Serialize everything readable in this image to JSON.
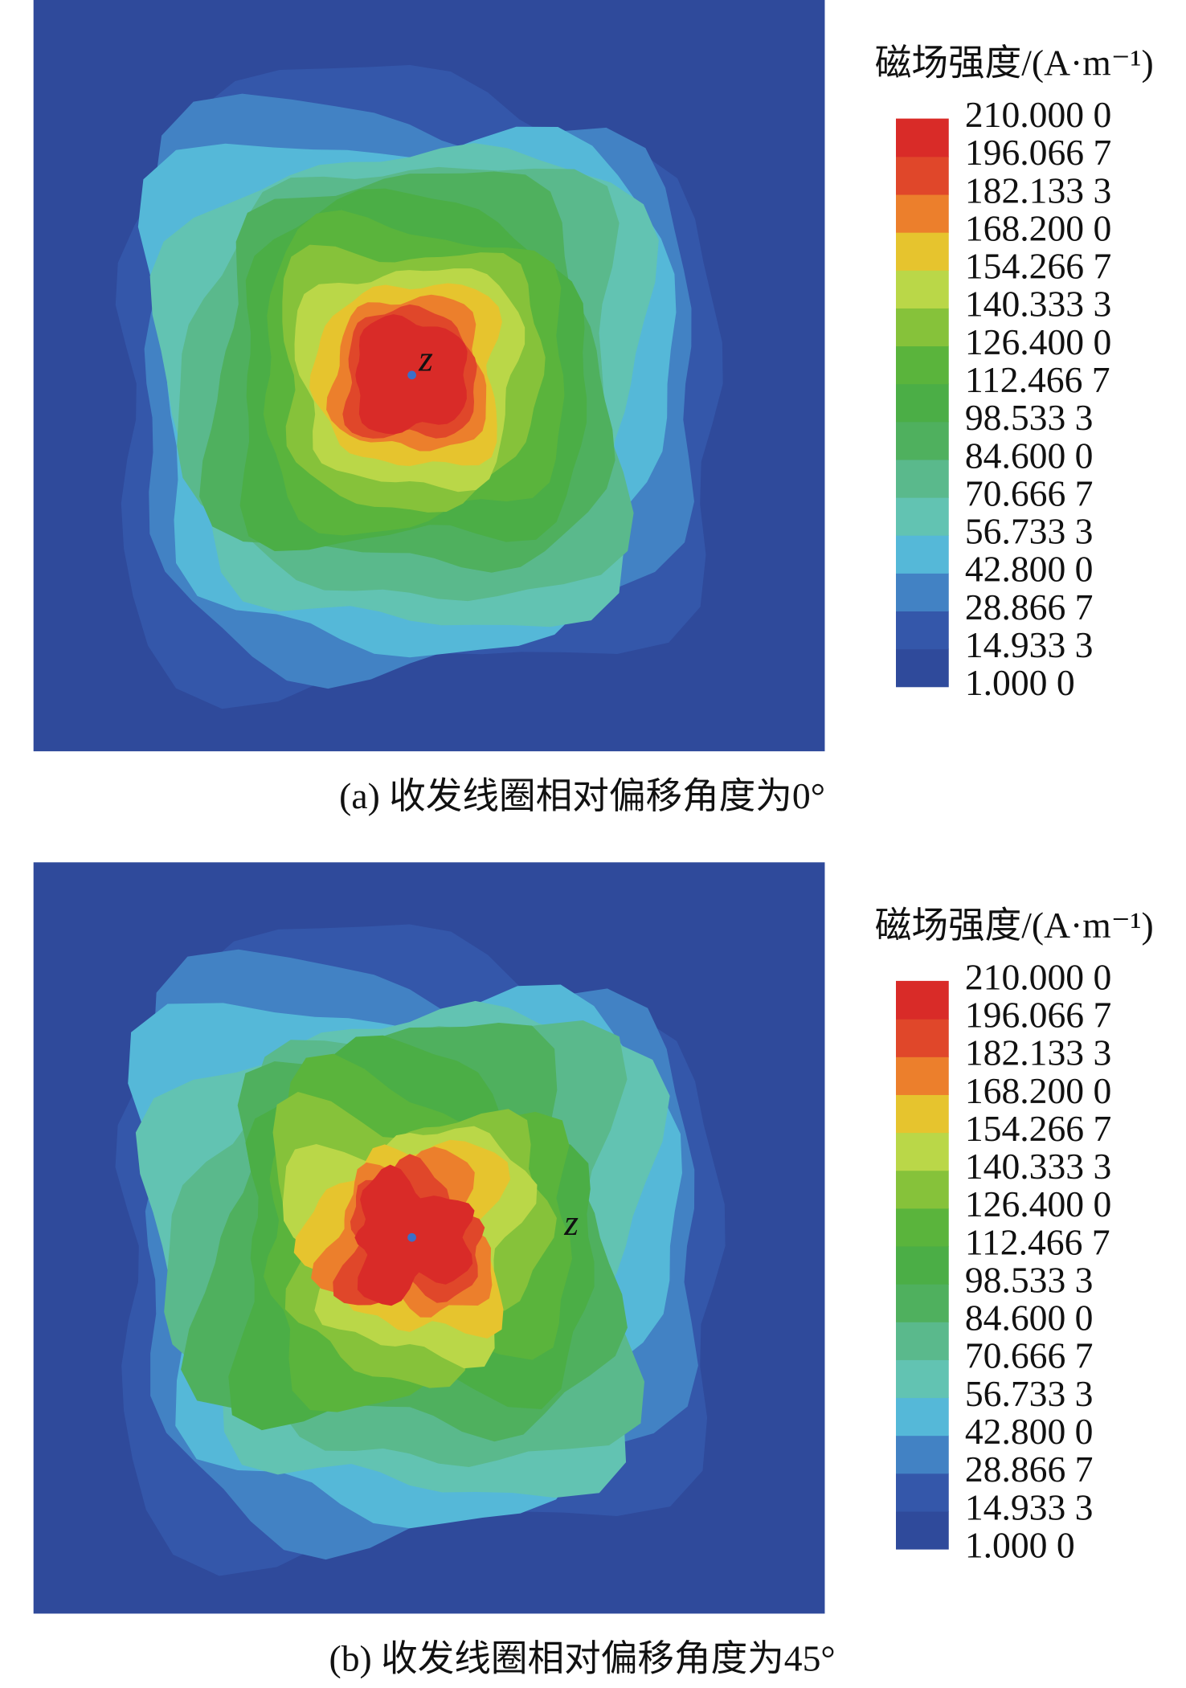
{
  "chart_data": [
    {
      "type": "contour",
      "title": "(a) 收发线圈相对偏移角度为0°",
      "legend_title": "磁场强度/(A·m⁻¹)",
      "annotation": "z",
      "levels": [
        {
          "value": 1.0,
          "label": "1.000 0"
        },
        {
          "value": 14.9333,
          "label": "14.933 3"
        },
        {
          "value": 28.8667,
          "label": "28.866 7"
        },
        {
          "value": 42.8,
          "label": "42.800 0"
        },
        {
          "value": 56.7333,
          "label": "56.733 3"
        },
        {
          "value": 70.6667,
          "label": "70.666 7"
        },
        {
          "value": 84.6,
          "label": "84.600 0"
        },
        {
          "value": 98.5333,
          "label": "98.533 3"
        },
        {
          "value": 112.4667,
          "label": "112.466 7"
        },
        {
          "value": 126.4,
          "label": "126.400 0"
        },
        {
          "value": 140.3333,
          "label": "140.333 3"
        },
        {
          "value": 154.2667,
          "label": "154.266 7"
        },
        {
          "value": 168.2,
          "label": "168.200 0"
        },
        {
          "value": 182.1333,
          "label": "182.133 3"
        },
        {
          "value": 196.0667,
          "label": "196.066 7"
        },
        {
          "value": 210.0,
          "label": "210.000 0"
        }
      ],
      "colors": [
        "#2f4a9b",
        "#3457aa",
        "#4282c4",
        "#55b8d8",
        "#62c3b2",
        "#5ab98c",
        "#4fb05e",
        "#4bae46",
        "#5ab43c",
        "#86c23a",
        "#bad748",
        "#e6c42e",
        "#ec7f2c",
        "#e0472a",
        "#d92b28"
      ]
    },
    {
      "type": "contour",
      "title": "(b) 收发线圈相对偏移角度为45°",
      "legend_title": "磁场强度/(A·m⁻¹)",
      "annotation": "z",
      "levels": [
        {
          "value": 1.0,
          "label": "1.000 0"
        },
        {
          "value": 14.9333,
          "label": "14.933 3"
        },
        {
          "value": 28.8667,
          "label": "28.866 7"
        },
        {
          "value": 42.8,
          "label": "42.800 0"
        },
        {
          "value": 56.7333,
          "label": "56.733 3"
        },
        {
          "value": 70.6667,
          "label": "70.666 7"
        },
        {
          "value": 84.6,
          "label": "84.600 0"
        },
        {
          "value": 98.5333,
          "label": "98.533 3"
        },
        {
          "value": 112.4667,
          "label": "112.466 7"
        },
        {
          "value": 126.4,
          "label": "126.400 0"
        },
        {
          "value": 140.3333,
          "label": "140.333 3"
        },
        {
          "value": 154.2667,
          "label": "154.266 7"
        },
        {
          "value": 168.2,
          "label": "168.200 0"
        },
        {
          "value": 182.1333,
          "label": "182.133 3"
        },
        {
          "value": 196.0667,
          "label": "196.066 7"
        },
        {
          "value": 210.0,
          "label": "210.000 0"
        }
      ],
      "colors": [
        "#2f4a9b",
        "#3457aa",
        "#4282c4",
        "#55b8d8",
        "#62c3b2",
        "#5ab98c",
        "#4fb05e",
        "#4bae46",
        "#5ab43c",
        "#86c23a",
        "#bad748",
        "#e6c42e",
        "#ec7f2c",
        "#e0472a",
        "#d92b28"
      ]
    }
  ]
}
